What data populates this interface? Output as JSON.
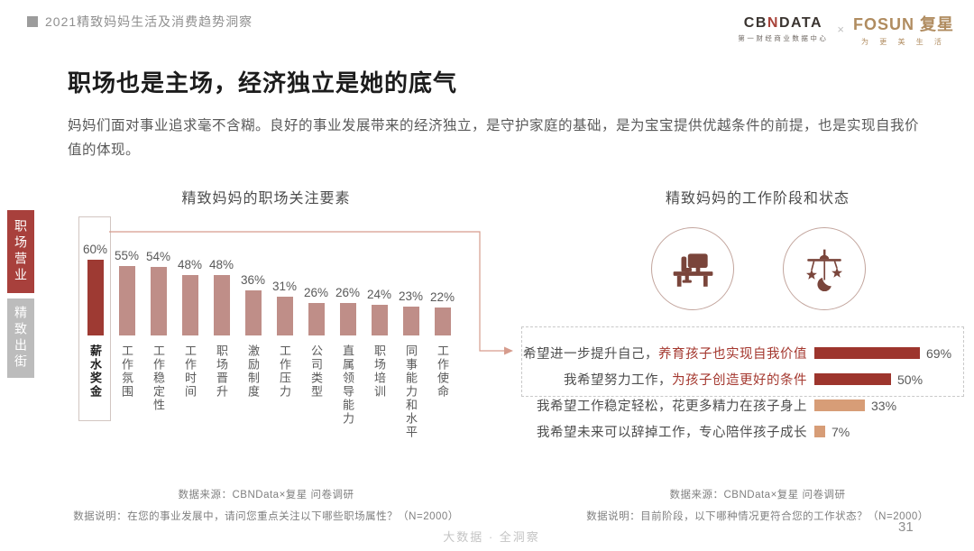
{
  "header": {
    "breadcrumb": "2021精致妈妈生活及消费趋势洞察",
    "cbn": {
      "wordmark_left": "CB",
      "wordmark_mid": "N",
      "wordmark_right": "DATA",
      "subtitle": "第一财经商业数据中心"
    },
    "separator": "×",
    "fosun": {
      "wordmark": "FOSUN 复星",
      "subtitle": "为 更 美 生 活"
    }
  },
  "page": {
    "title": "职场也是主场，经济独立是她的底气",
    "intro": "妈妈们面对事业追求毫不含糊。良好的事业发展带来的经济独立，是守护家庭的基础，是为宝宝提供优越条件的前提，也是实现自我价值的体现。",
    "watermark": "大数据 · 全洞察",
    "page_number": "31"
  },
  "sidebar": {
    "tabs": [
      {
        "label": "职场营业",
        "active": true
      },
      {
        "label": "精致出街",
        "active": false
      }
    ]
  },
  "chart_data": [
    {
      "type": "bar",
      "title": "精致妈妈的职场关注要素",
      "categories": [
        "薪水奖金",
        "工作氛围",
        "工作稳定性",
        "工作时间",
        "职场晋升",
        "激励制度",
        "工作压力",
        "公司类型",
        "直属领导能力",
        "职场培训",
        "同事能力和水平",
        "工作使命"
      ],
      "values": [
        60,
        55,
        54,
        48,
        48,
        36,
        31,
        26,
        26,
        24,
        23,
        22
      ],
      "unit": "%",
      "ylim": [
        0,
        60
      ],
      "highlight_index": 0,
      "colors": {
        "highlight": "#9e3a33",
        "default": "#bf8e88"
      },
      "source": "数据来源：CBNData×复星 问卷调研",
      "note": "数据说明：在您的事业发展中，请问您重点关注以下哪些职场属性？（N=2000）"
    },
    {
      "type": "bar",
      "orientation": "horizontal",
      "title": "精致妈妈的工作阶段和状态",
      "icons": [
        "office-desk",
        "baby-mobile"
      ],
      "unit": "%",
      "rows": [
        {
          "label_plain": "希望进一步提升自己，",
          "label_em": "养育孩子也实现自我价值",
          "value": 69,
          "color": "#9d352d",
          "boxed": true
        },
        {
          "label_plain": "我希望努力工作，",
          "label_em": "为孩子创造更好的条件",
          "value": 50,
          "color": "#9d352d",
          "boxed": true
        },
        {
          "label_plain": "我希望工作稳定轻松，花更多精力在孩子身上",
          "label_em": "",
          "value": 33,
          "color": "#d79d77",
          "boxed": false
        },
        {
          "label_plain": "我希望未来可以辞掉工作，专心陪伴孩子成长",
          "label_em": "",
          "value": 7,
          "color": "#d79d77",
          "boxed": false
        }
      ],
      "source": "数据来源：CBNData×复星 问卷调研",
      "note": "数据说明：目前阶段，以下哪种情况更符合您的工作状态？（N=2000）"
    }
  ],
  "colors": {
    "accent_red": "#a8403c",
    "rose_bar": "#bf8e88",
    "tan_bar": "#d79d77",
    "em_text": "#a4372e",
    "connector": "#d69c8d",
    "fosun_gold": "#b08c60"
  }
}
